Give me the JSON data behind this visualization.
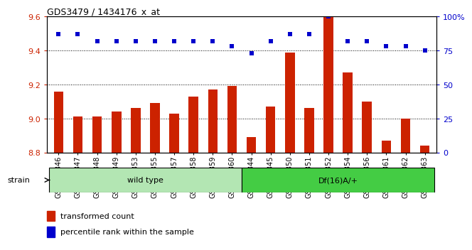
{
  "title": "GDS3479 / 1434176_x_at",
  "categories": [
    "GSM272346",
    "GSM272347",
    "GSM272348",
    "GSM272349",
    "GSM272353",
    "GSM272355",
    "GSM272357",
    "GSM272358",
    "GSM272359",
    "GSM272360",
    "GSM272344",
    "GSM272345",
    "GSM272350",
    "GSM272351",
    "GSM272352",
    "GSM272354",
    "GSM272356",
    "GSM272361",
    "GSM272362",
    "GSM272363"
  ],
  "bar_values": [
    9.16,
    9.01,
    9.01,
    9.04,
    9.06,
    9.09,
    9.03,
    9.13,
    9.17,
    9.19,
    8.89,
    9.07,
    9.39,
    9.06,
    9.6,
    9.27,
    9.1,
    8.87,
    9.0,
    8.84
  ],
  "dot_values": [
    87,
    87,
    82,
    82,
    82,
    82,
    82,
    82,
    82,
    78,
    73,
    82,
    87,
    87,
    100,
    82,
    82,
    78,
    78,
    75
  ],
  "ylim_left": [
    8.8,
    9.6
  ],
  "ylim_right": [
    0,
    100
  ],
  "yticks_left": [
    8.8,
    9.0,
    9.2,
    9.4,
    9.6
  ],
  "yticks_right": [
    0,
    25,
    50,
    75,
    100
  ],
  "grid_values": [
    9.0,
    9.2,
    9.4
  ],
  "bar_color": "#cc2200",
  "dot_color": "#0000cc",
  "wt_count": 10,
  "wild_type_label": "wild type",
  "df16_label": "Df(16)A/+",
  "strain_label": "strain",
  "legend_bar_label": "transformed count",
  "legend_dot_label": "percentile rank within the sample",
  "wt_color": "#b3e6b3",
  "df_color": "#44cc44",
  "title_fontsize": 9,
  "tick_fontsize": 7,
  "bar_width": 0.5
}
